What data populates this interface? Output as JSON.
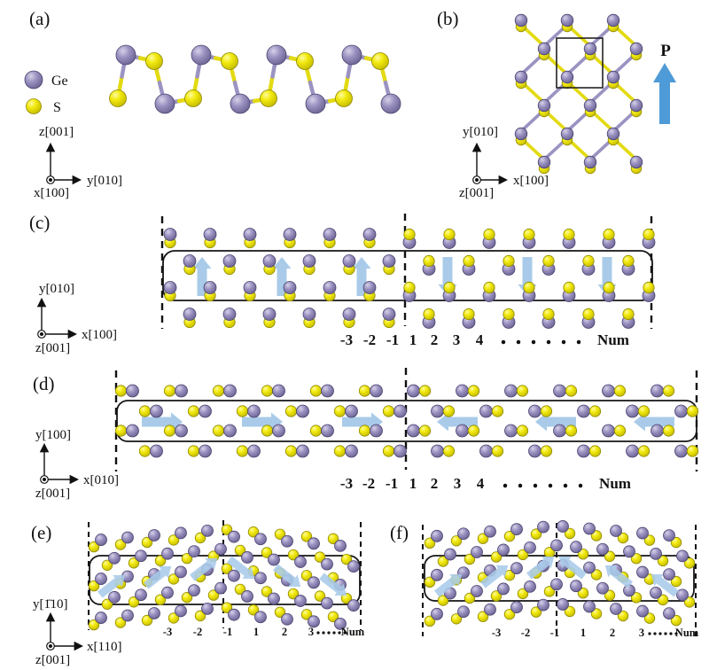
{
  "colors": {
    "ge": "#9a91c0",
    "s": "#f3ea10",
    "bond_ge": "#9b93c2",
    "bond_s": "#e3da12",
    "arrow": "#a9cbe9",
    "p_arrow": "#4f9bd7"
  },
  "legend": {
    "items": [
      {
        "id": "ge",
        "label": "Ge"
      },
      {
        "id": "s",
        "label": "S"
      }
    ]
  },
  "panels": {
    "a": {
      "label": "(a)",
      "axes": {
        "up": "z[001]",
        "right": "y[010]",
        "origin": "x[100]"
      }
    },
    "b": {
      "label": "(b)",
      "polarization_label": "P",
      "axes": {
        "up": "y[010]",
        "right": "x[100]",
        "origin": "z[001]"
      }
    },
    "c": {
      "label": "(c)",
      "axes": {
        "up": "y[010]",
        "right": "x[100]",
        "origin": "z[001]"
      },
      "indices": [
        "-3",
        "-2",
        "-1",
        "1",
        "2",
        "3",
        "4"
      ],
      "ellipsis_dots": 6,
      "num_label": "Num"
    },
    "d": {
      "label": "(d)",
      "axes": {
        "up": "y[100]",
        "right": "x[010]",
        "origin": "z[001]"
      },
      "indices": [
        "-3",
        "-2",
        "-1",
        "1",
        "2",
        "3",
        "4"
      ],
      "ellipsis_dots": 6,
      "num_label": "Num"
    },
    "e": {
      "label": "(e)",
      "axes": {
        "up": "y[1̄10]",
        "right": "x[110]",
        "origin": "z[001]"
      },
      "indices": [
        "-3",
        "-2",
        "-1",
        "1",
        "2",
        "3"
      ],
      "ellipsis_dots": 6,
      "num_label": "Num"
    },
    "f": {
      "label": "(f)",
      "indices": [
        "-3",
        "-2",
        "-1",
        "1",
        "2",
        "3"
      ],
      "ellipsis_dots": 6,
      "num_label": "Num"
    }
  }
}
